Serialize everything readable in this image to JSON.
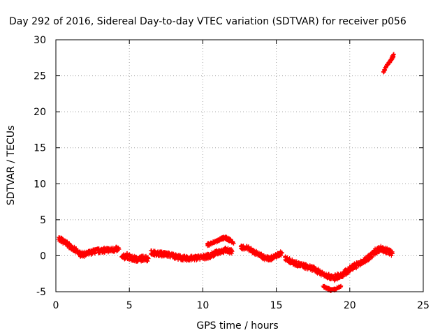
{
  "chart_data": {
    "type": "scatter",
    "title": "Day 292 of 2016, Sidereal Day-to-day VTEC variation (SDTVAR) for receiver p056",
    "xlabel": "GPS time / hours",
    "ylabel": "SDTVAR / TECUs",
    "xlim": [
      0,
      25
    ],
    "ylim": [
      -5,
      30
    ],
    "xticks": [
      0,
      5,
      10,
      15,
      20,
      25
    ],
    "yticks": [
      -5,
      0,
      5,
      10,
      15,
      20,
      25,
      30
    ],
    "xtick_labels": [
      "0",
      "5",
      "10",
      "15",
      "20",
      "25"
    ],
    "ytick_labels": [
      "-5",
      "0",
      "5",
      "10",
      "15",
      "20",
      "25",
      "30"
    ],
    "grid": true,
    "marker": "+",
    "series": [
      {
        "name": "SDTVAR",
        "color": "#ff0000",
        "segments": [
          {
            "x": [
              0.2,
              0.5,
              0.8,
              1.1,
              1.4,
              1.7,
              2.0,
              2.3,
              2.6,
              3.0,
              3.4,
              3.8,
              4.1,
              4.3
            ],
            "y": [
              2.4,
              2.0,
              1.6,
              1.1,
              0.6,
              0.2,
              0.2,
              0.4,
              0.6,
              0.7,
              0.8,
              0.8,
              0.9,
              0.9
            ],
            "spread": 0.7
          },
          {
            "x": [
              4.5,
              4.8,
              5.2,
              5.6,
              6.0,
              6.3
            ],
            "y": [
              -0.3,
              0.0,
              -0.4,
              -0.5,
              -0.3,
              -0.4
            ],
            "spread": 0.8
          },
          {
            "x": [
              6.5,
              7.0,
              7.5,
              8.0,
              8.5,
              9.0,
              9.5,
              10.0,
              10.5,
              11.0,
              11.5,
              12.0
            ],
            "y": [
              0.4,
              0.3,
              0.2,
              0.0,
              -0.3,
              -0.4,
              -0.3,
              -0.2,
              0.0,
              0.5,
              0.8,
              0.6
            ],
            "spread": 0.7
          },
          {
            "x": [
              10.3,
              10.8,
              11.2,
              11.5,
              11.9,
              12.1
            ],
            "y": [
              1.5,
              1.9,
              2.3,
              2.5,
              2.1,
              1.7
            ],
            "spread": 0.4
          },
          {
            "x": [
              12.6,
              13.0,
              13.4,
              13.8,
              14.2,
              14.6,
              15.0,
              15.4
            ],
            "y": [
              1.2,
              1.1,
              0.6,
              0.2,
              -0.3,
              -0.4,
              0.0,
              0.4
            ],
            "spread": 0.6
          },
          {
            "x": [
              15.6,
              16.0,
              16.5,
              17.0,
              17.5,
              18.0,
              18.5,
              19.0
            ],
            "y": [
              -0.3,
              -0.8,
              -1.2,
              -1.5,
              -1.8,
              -2.3,
              -2.8,
              -3.2
            ],
            "spread": 0.7
          },
          {
            "x": [
              18.2,
              18.5,
              18.8,
              19.1,
              19.4
            ],
            "y": [
              -4.3,
              -4.6,
              -4.8,
              -4.6,
              -4.2
            ],
            "spread": 0.3
          },
          {
            "x": [
              19.0,
              19.4,
              19.8,
              20.2,
              20.6,
              21.0,
              21.4,
              21.8,
              22.1,
              22.5,
              22.9
            ],
            "y": [
              -3.0,
              -2.7,
              -2.2,
              -1.5,
              -1.2,
              -0.7,
              -0.1,
              0.7,
              1.0,
              0.7,
              0.3
            ],
            "spread": 0.8
          },
          {
            "x": [
              22.3,
              22.5,
              22.7,
              22.9,
              23.0
            ],
            "y": [
              25.6,
              26.3,
              26.9,
              27.5,
              28.0
            ],
            "spread": 0.3
          }
        ]
      }
    ]
  }
}
